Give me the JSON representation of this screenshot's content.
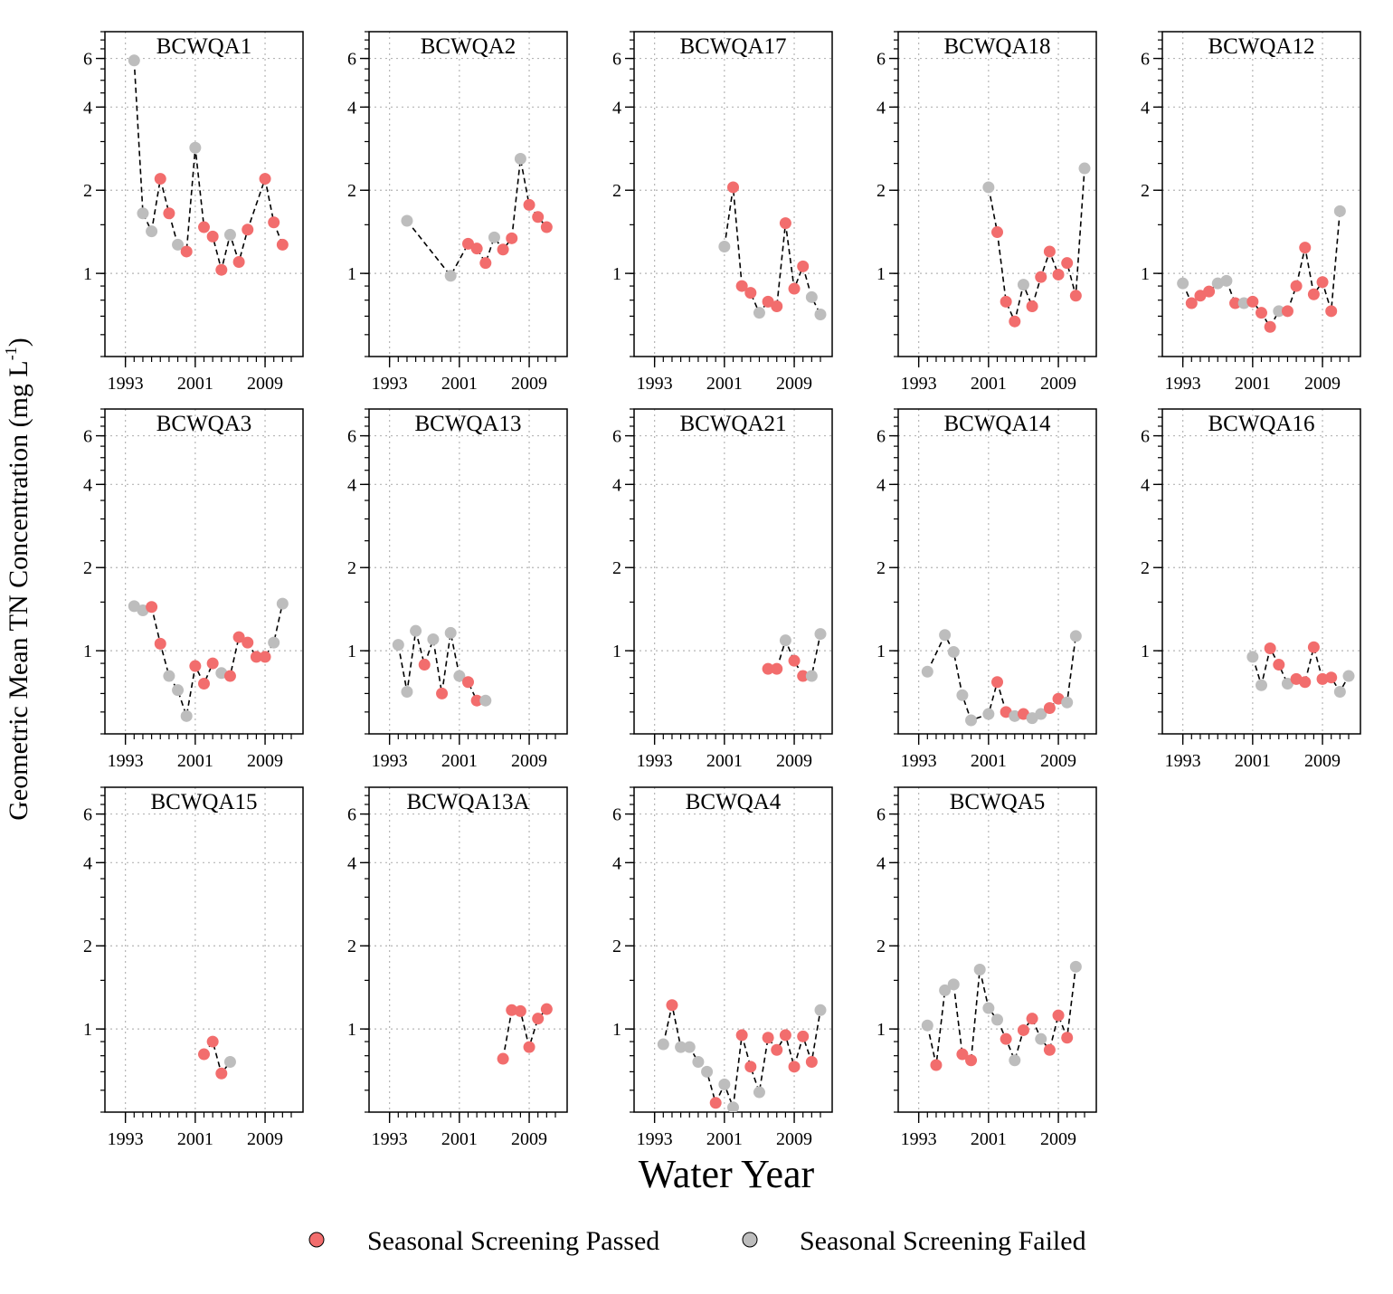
{
  "chart_data": {
    "type": "scatter",
    "ylabel": "Geometric Mean TN Concentration (mg L",
    "ylabel_sup": "-1",
    "ylabel_close": ")",
    "xlabel": "Water Year",
    "x_ticks": [
      1993,
      2001,
      2009
    ],
    "x_tick_labels": [
      "1993",
      "2001",
      "2009"
    ],
    "xlim": [
      1992,
      2012
    ],
    "y_scale": "log",
    "ylim": [
      0.5,
      7.5
    ],
    "y_ticks": [
      1,
      2,
      4,
      6
    ],
    "y_tick_labels": [
      "1",
      "2",
      "4",
      "6"
    ],
    "grid": true,
    "connector": "dashed",
    "legend": {
      "placement": "bottom",
      "items": [
        {
          "key": "passed",
          "label": "Seasonal Screening Passed",
          "color": "#f26d6d"
        },
        {
          "key": "failed",
          "label": "Seasonal Screening Failed",
          "color": "#bdbdbd"
        }
      ]
    },
    "panels": [
      {
        "title": "BCWQA1",
        "points": [
          [
            1994,
            5.9,
            "f"
          ],
          [
            1995,
            1.65,
            "f"
          ],
          [
            1996,
            1.42,
            "f"
          ],
          [
            1997,
            2.2,
            "p"
          ],
          [
            1998,
            1.65,
            "p"
          ],
          [
            1999,
            1.27,
            "f"
          ],
          [
            2000,
            1.2,
            "p"
          ],
          [
            2001,
            2.85,
            "f"
          ],
          [
            2002,
            1.47,
            "p"
          ],
          [
            2003,
            1.36,
            "p"
          ],
          [
            2004,
            1.03,
            "p"
          ],
          [
            2005,
            1.38,
            "f"
          ],
          [
            2006,
            1.1,
            "p"
          ],
          [
            2007,
            1.44,
            "p"
          ],
          [
            2009,
            2.2,
            "p"
          ],
          [
            2010,
            1.53,
            "p"
          ],
          [
            2011,
            1.27,
            "p"
          ]
        ]
      },
      {
        "title": "BCWQA2",
        "points": [
          [
            1995,
            1.55,
            "f"
          ],
          [
            2000,
            0.98,
            "f"
          ],
          [
            2002,
            1.28,
            "p"
          ],
          [
            2003,
            1.23,
            "p"
          ],
          [
            2004,
            1.09,
            "p"
          ],
          [
            2005,
            1.35,
            "f"
          ],
          [
            2006,
            1.22,
            "p"
          ],
          [
            2007,
            1.34,
            "p"
          ],
          [
            2008,
            2.6,
            "f"
          ],
          [
            2009,
            1.77,
            "p"
          ],
          [
            2010,
            1.6,
            "p"
          ],
          [
            2011,
            1.47,
            "p"
          ]
        ]
      },
      {
        "title": "BCWQA17",
        "points": [
          [
            2001,
            1.25,
            "f"
          ],
          [
            2002,
            2.05,
            "p"
          ],
          [
            2003,
            0.9,
            "p"
          ],
          [
            2004,
            0.85,
            "p"
          ],
          [
            2005,
            0.72,
            "f"
          ],
          [
            2006,
            0.79,
            "p"
          ],
          [
            2007,
            0.76,
            "p"
          ],
          [
            2008,
            1.52,
            "p"
          ],
          [
            2009,
            0.88,
            "p"
          ],
          [
            2010,
            1.06,
            "p"
          ],
          [
            2011,
            0.82,
            "f"
          ],
          [
            2012,
            0.71,
            "f"
          ]
        ]
      },
      {
        "title": "BCWQA18",
        "points": [
          [
            2001,
            2.05,
            "f"
          ],
          [
            2002,
            1.41,
            "p"
          ],
          [
            2003,
            0.79,
            "p"
          ],
          [
            2004,
            0.67,
            "p"
          ],
          [
            2005,
            0.91,
            "f"
          ],
          [
            2006,
            0.76,
            "p"
          ],
          [
            2007,
            0.97,
            "p"
          ],
          [
            2008,
            1.2,
            "p"
          ],
          [
            2009,
            0.99,
            "p"
          ],
          [
            2010,
            1.09,
            "p"
          ],
          [
            2011,
            0.83,
            "p"
          ],
          [
            2012,
            2.4,
            "f"
          ]
        ]
      },
      {
        "title": "BCWQA12",
        "points": [
          [
            1993,
            0.92,
            "f"
          ],
          [
            1994,
            0.78,
            "p"
          ],
          [
            1995,
            0.83,
            "p"
          ],
          [
            1996,
            0.86,
            "p"
          ],
          [
            1997,
            0.92,
            "f"
          ],
          [
            1998,
            0.94,
            "f"
          ],
          [
            1999,
            0.78,
            "p"
          ],
          [
            2000,
            0.78,
            "f"
          ],
          [
            2001,
            0.79,
            "p"
          ],
          [
            2002,
            0.72,
            "p"
          ],
          [
            2003,
            0.64,
            "p"
          ],
          [
            2004,
            0.73,
            "f"
          ],
          [
            2005,
            0.73,
            "p"
          ],
          [
            2006,
            0.9,
            "p"
          ],
          [
            2007,
            1.24,
            "p"
          ],
          [
            2008,
            0.84,
            "p"
          ],
          [
            2009,
            0.93,
            "p"
          ],
          [
            2010,
            0.73,
            "p"
          ],
          [
            2011,
            1.68,
            "f"
          ]
        ]
      },
      {
        "title": "BCWQA3",
        "points": [
          [
            1994,
            1.45,
            "f"
          ],
          [
            1995,
            1.4,
            "f"
          ],
          [
            1996,
            1.44,
            "p"
          ],
          [
            1997,
            1.06,
            "p"
          ],
          [
            1998,
            0.81,
            "f"
          ],
          [
            1999,
            0.72,
            "f"
          ],
          [
            2000,
            0.58,
            "f"
          ],
          [
            2001,
            0.88,
            "p"
          ],
          [
            2002,
            0.76,
            "p"
          ],
          [
            2003,
            0.9,
            "p"
          ],
          [
            2004,
            0.83,
            "f"
          ],
          [
            2005,
            0.81,
            "p"
          ],
          [
            2006,
            1.12,
            "p"
          ],
          [
            2007,
            1.07,
            "p"
          ],
          [
            2008,
            0.95,
            "p"
          ],
          [
            2009,
            0.95,
            "p"
          ],
          [
            2010,
            1.07,
            "f"
          ],
          [
            2011,
            1.48,
            "f"
          ]
        ]
      },
      {
        "title": "BCWQA13",
        "points": [
          [
            1994,
            1.05,
            "f"
          ],
          [
            1995,
            0.71,
            "f"
          ],
          [
            1996,
            1.18,
            "f"
          ],
          [
            1997,
            0.89,
            "p"
          ],
          [
            1998,
            1.1,
            "f"
          ],
          [
            1999,
            0.7,
            "p"
          ],
          [
            2000,
            1.16,
            "f"
          ],
          [
            2001,
            0.81,
            "f"
          ],
          [
            2002,
            0.77,
            "p"
          ],
          [
            2003,
            0.66,
            "p"
          ],
          [
            2004,
            0.66,
            "f"
          ]
        ]
      },
      {
        "title": "BCWQA21",
        "points": [
          [
            2006,
            0.86,
            "p"
          ],
          [
            2007,
            0.86,
            "p"
          ],
          [
            2008,
            1.09,
            "f"
          ],
          [
            2009,
            0.92,
            "p"
          ],
          [
            2010,
            0.81,
            "p"
          ],
          [
            2011,
            0.81,
            "f"
          ],
          [
            2012,
            1.15,
            "f"
          ]
        ]
      },
      {
        "title": "BCWQA14",
        "points": [
          [
            1994,
            0.84,
            "f"
          ],
          [
            1996,
            1.14,
            "f"
          ],
          [
            1997,
            0.99,
            "f"
          ],
          [
            1998,
            0.69,
            "f"
          ],
          [
            1999,
            0.56,
            "f"
          ],
          [
            2001,
            0.59,
            "f"
          ],
          [
            2002,
            0.77,
            "p"
          ],
          [
            2003,
            0.6,
            "p"
          ],
          [
            2004,
            0.58,
            "f"
          ],
          [
            2005,
            0.59,
            "p"
          ],
          [
            2006,
            0.57,
            "f"
          ],
          [
            2007,
            0.59,
            "f"
          ],
          [
            2008,
            0.62,
            "p"
          ],
          [
            2009,
            0.67,
            "p"
          ],
          [
            2010,
            0.65,
            "f"
          ],
          [
            2011,
            1.13,
            "f"
          ]
        ]
      },
      {
        "title": "BCWQA16",
        "points": [
          [
            2001,
            0.95,
            "f"
          ],
          [
            2002,
            0.75,
            "f"
          ],
          [
            2003,
            1.02,
            "p"
          ],
          [
            2004,
            0.89,
            "p"
          ],
          [
            2005,
            0.76,
            "f"
          ],
          [
            2006,
            0.79,
            "p"
          ],
          [
            2007,
            0.77,
            "p"
          ],
          [
            2008,
            1.03,
            "p"
          ],
          [
            2009,
            0.79,
            "p"
          ],
          [
            2010,
            0.8,
            "p"
          ],
          [
            2011,
            0.71,
            "f"
          ],
          [
            2012,
            0.81,
            "f"
          ]
        ]
      },
      {
        "title": "BCWQA15",
        "points": [
          [
            2002,
            0.81,
            "p"
          ],
          [
            2003,
            0.9,
            "p"
          ],
          [
            2004,
            0.69,
            "p"
          ],
          [
            2005,
            0.76,
            "f"
          ]
        ]
      },
      {
        "title": "BCWQA13A",
        "points": [
          [
            2006,
            0.78,
            "p"
          ],
          [
            2007,
            1.17,
            "p"
          ],
          [
            2008,
            1.16,
            "p"
          ],
          [
            2009,
            0.86,
            "p"
          ],
          [
            2010,
            1.09,
            "p"
          ],
          [
            2011,
            1.18,
            "p"
          ]
        ]
      },
      {
        "title": "BCWQA4",
        "points": [
          [
            1994,
            0.88,
            "f"
          ],
          [
            1995,
            1.22,
            "p"
          ],
          [
            1996,
            0.86,
            "f"
          ],
          [
            1997,
            0.86,
            "f"
          ],
          [
            1998,
            0.76,
            "f"
          ],
          [
            1999,
            0.7,
            "f"
          ],
          [
            2000,
            0.54,
            "p"
          ],
          [
            2001,
            0.63,
            "f"
          ],
          [
            2002,
            0.52,
            "f"
          ],
          [
            2003,
            0.95,
            "p"
          ],
          [
            2004,
            0.73,
            "p"
          ],
          [
            2005,
            0.59,
            "f"
          ],
          [
            2006,
            0.93,
            "p"
          ],
          [
            2007,
            0.84,
            "p"
          ],
          [
            2008,
            0.95,
            "p"
          ],
          [
            2009,
            0.73,
            "p"
          ],
          [
            2010,
            0.94,
            "p"
          ],
          [
            2011,
            0.76,
            "p"
          ],
          [
            2012,
            1.17,
            "f"
          ]
        ]
      },
      {
        "title": "BCWQA5",
        "points": [
          [
            1994,
            1.03,
            "f"
          ],
          [
            1995,
            0.74,
            "p"
          ],
          [
            1996,
            1.38,
            "f"
          ],
          [
            1997,
            1.45,
            "f"
          ],
          [
            1998,
            0.81,
            "p"
          ],
          [
            1999,
            0.77,
            "p"
          ],
          [
            2000,
            1.64,
            "f"
          ],
          [
            2001,
            1.19,
            "f"
          ],
          [
            2002,
            1.08,
            "f"
          ],
          [
            2003,
            0.92,
            "p"
          ],
          [
            2004,
            0.77,
            "f"
          ],
          [
            2005,
            0.99,
            "p"
          ],
          [
            2006,
            1.09,
            "p"
          ],
          [
            2007,
            0.92,
            "f"
          ],
          [
            2008,
            0.84,
            "p"
          ],
          [
            2009,
            1.12,
            "p"
          ],
          [
            2010,
            0.93,
            "p"
          ],
          [
            2011,
            1.68,
            "f"
          ]
        ]
      }
    ]
  }
}
